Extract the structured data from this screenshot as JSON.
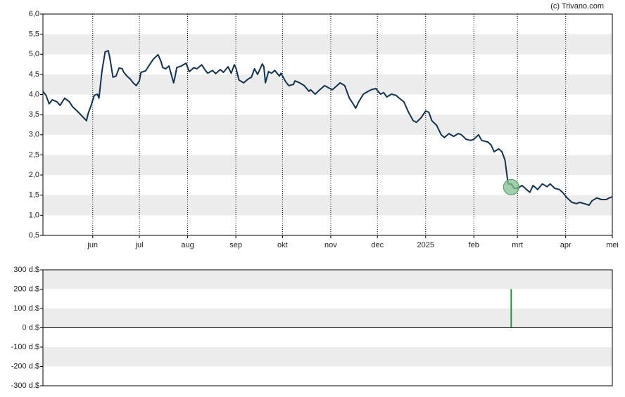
{
  "source": "(c) Trivano.com",
  "chart_data": [
    {
      "type": "line",
      "color": "#12324f",
      "x": [
        0,
        2,
        4,
        6,
        9,
        11,
        14,
        17,
        19,
        22,
        25,
        28,
        29,
        31,
        33,
        35,
        36,
        38,
        40,
        42,
        43,
        45,
        47,
        49,
        51,
        52,
        54,
        56,
        58,
        60,
        62,
        63,
        66,
        68,
        71,
        74,
        76,
        77,
        79,
        81,
        84,
        85,
        86,
        89,
        92,
        94,
        95,
        97,
        99,
        102,
        105,
        106,
        109,
        111,
        114,
        116,
        119,
        121,
        123,
        124,
        126,
        129,
        132,
        134,
        136,
        138,
        141,
        142,
        143,
        145,
        147,
        149,
        152,
        153,
        156,
        158,
        161,
        162,
        165,
        168,
        171,
        172,
        175,
        178,
        181,
        183,
        186,
        189,
        191,
        194,
        197,
        200,
        201,
        203,
        206,
        209,
        211,
        214,
        217,
        219,
        221,
        224,
        227,
        229,
        232,
        235,
        238,
        240,
        243,
        246,
        248,
        250,
        253,
        256,
        258,
        261,
        264,
        267,
        269,
        272,
        275,
        277,
        280,
        282,
        286,
        288,
        290,
        293,
        295,
        297,
        299,
        301,
        303,
        305,
        308,
        310,
        313,
        315,
        318,
        321,
        324,
        326,
        329,
        332,
        334,
        337,
        340,
        343,
        345,
        348,
        351,
        353,
        356,
        359,
        362,
        364,
        366
      ],
      "values": [
        4.08,
        3.98,
        3.77,
        3.87,
        3.82,
        3.73,
        3.91,
        3.82,
        3.7,
        3.59,
        3.47,
        3.35,
        3.52,
        3.73,
        3.98,
        4.01,
        3.91,
        4.6,
        5.06,
        5.09,
        4.92,
        4.43,
        4.46,
        4.66,
        4.64,
        4.55,
        4.46,
        4.39,
        4.29,
        4.22,
        4.34,
        4.55,
        4.59,
        4.71,
        4.88,
        4.99,
        4.81,
        4.67,
        4.64,
        4.71,
        4.29,
        4.46,
        4.67,
        4.71,
        4.78,
        4.57,
        4.6,
        4.67,
        4.64,
        4.74,
        4.57,
        4.53,
        4.6,
        4.52,
        4.62,
        4.55,
        4.69,
        4.53,
        4.74,
        4.67,
        4.36,
        4.29,
        4.39,
        4.43,
        4.64,
        4.5,
        4.76,
        4.69,
        4.29,
        4.57,
        4.53,
        4.6,
        4.46,
        4.53,
        4.32,
        4.22,
        4.25,
        4.34,
        4.29,
        4.22,
        4.08,
        4.12,
        4.01,
        4.12,
        4.22,
        4.18,
        4.12,
        4.22,
        4.29,
        4.22,
        3.91,
        3.73,
        3.66,
        3.82,
        4.01,
        4.08,
        4.12,
        4.15,
        4.01,
        4.05,
        3.94,
        4.01,
        3.98,
        3.91,
        3.82,
        3.56,
        3.35,
        3.31,
        3.42,
        3.59,
        3.56,
        3.35,
        3.24,
        3.0,
        2.93,
        3.03,
        2.96,
        3.03,
        3.0,
        2.89,
        2.86,
        2.89,
        3.0,
        2.86,
        2.82,
        2.75,
        2.58,
        2.65,
        2.58,
        2.37,
        1.78,
        1.78,
        1.67,
        1.67,
        1.74,
        1.67,
        1.57,
        1.74,
        1.64,
        1.78,
        1.71,
        1.78,
        1.67,
        1.64,
        1.57,
        1.43,
        1.32,
        1.29,
        1.32,
        1.29,
        1.25,
        1.36,
        1.43,
        1.39,
        1.39,
        1.43,
        1.46
      ],
      "marker": {
        "x": 301,
        "y": 1.7,
        "color": "#7fc08f"
      },
      "xlim": [
        0,
        366
      ],
      "xticks": [
        {
          "value": 32,
          "label": "jun"
        },
        {
          "value": 62,
          "label": "jul"
        },
        {
          "value": 93,
          "label": "aug"
        },
        {
          "value": 124,
          "label": "sep"
        },
        {
          "value": 154,
          "label": "okt"
        },
        {
          "value": 185,
          "label": "nov"
        },
        {
          "value": 215,
          "label": "dec"
        },
        {
          "value": 246,
          "label": "2025"
        },
        {
          "value": 277,
          "label": "feb"
        },
        {
          "value": 305,
          "label": "mrt"
        },
        {
          "value": 336,
          "label": "apr"
        },
        {
          "value": 366,
          "label": "mei"
        }
      ],
      "ylim": [
        0.5,
        6
      ],
      "yticks": [
        {
          "value": 0.5,
          "label": "0,5"
        },
        {
          "value": 1,
          "label": "1,0"
        },
        {
          "value": 1.5,
          "label": "1,5"
        },
        {
          "value": 2,
          "label": "2,0"
        },
        {
          "value": 2.5,
          "label": "2,5"
        },
        {
          "value": 3,
          "label": "3,0"
        },
        {
          "value": 3.5,
          "label": "3,5"
        },
        {
          "value": 4,
          "label": "4,0"
        },
        {
          "value": 4.5,
          "label": "4,5"
        },
        {
          "value": 5,
          "label": "5,0"
        },
        {
          "value": 5.5,
          "label": "5,5"
        },
        {
          "value": 6,
          "label": "6,0"
        }
      ],
      "grid": true
    },
    {
      "type": "bar",
      "color": "#2e8b3e",
      "x": [
        301
      ],
      "values": [
        200
      ],
      "xlim": [
        0,
        366
      ],
      "ylim": [
        -300,
        300
      ],
      "yticks": [
        {
          "value": -300,
          "label": "-300 d.$"
        },
        {
          "value": -200,
          "label": "-200 d.$"
        },
        {
          "value": -100,
          "label": "-100 d.$"
        },
        {
          "value": 0,
          "label": "0 d.$"
        },
        {
          "value": 100,
          "label": "100 d.$"
        },
        {
          "value": 200,
          "label": "200 d.$"
        },
        {
          "value": 300,
          "label": "300 d.$"
        }
      ],
      "grid": true
    }
  ]
}
